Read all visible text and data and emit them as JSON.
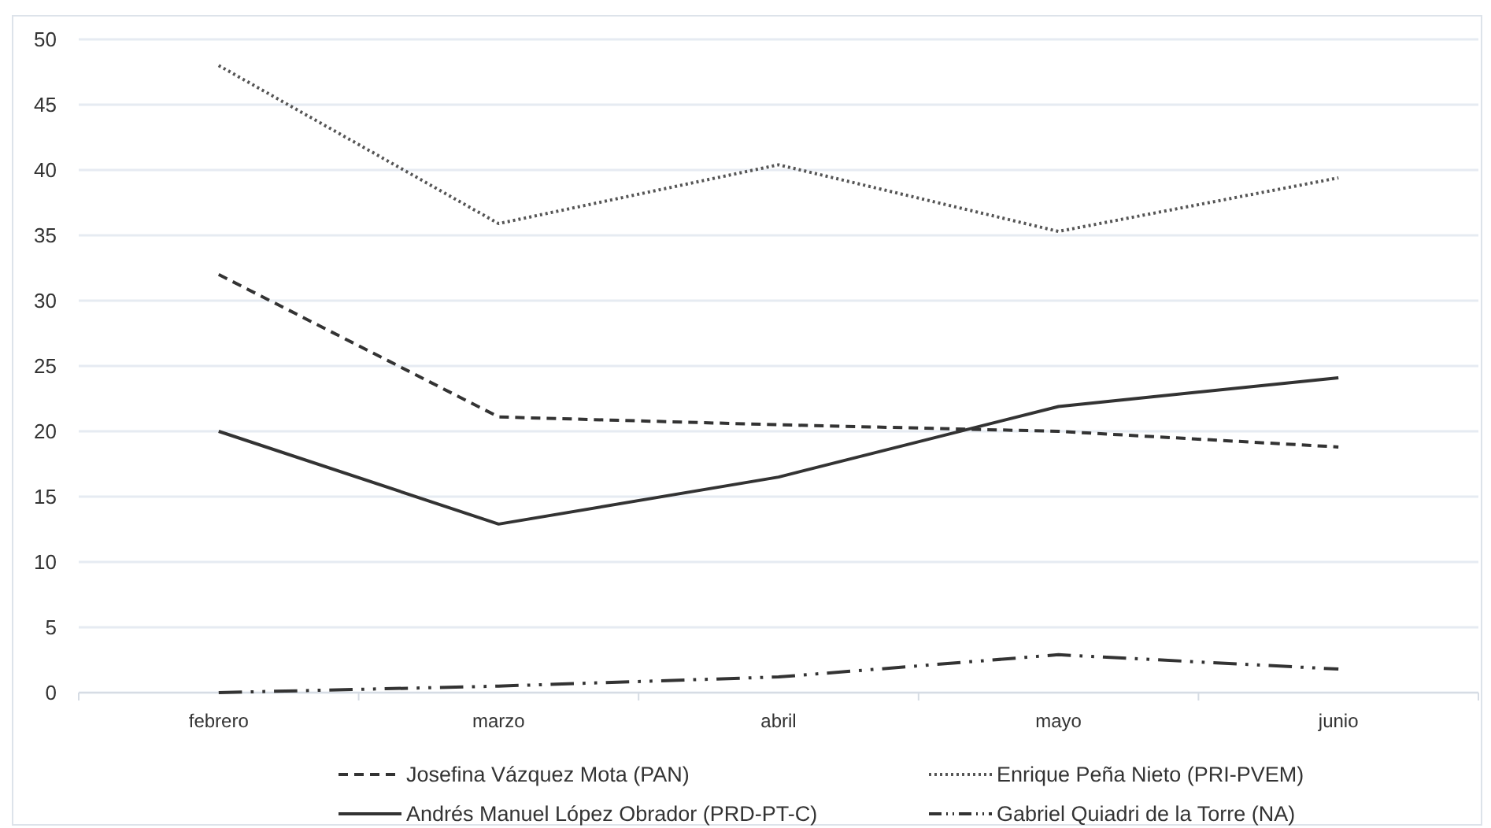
{
  "chart_data": {
    "type": "line",
    "categories": [
      "febrero",
      "marzo",
      "abril",
      "mayo",
      "junio"
    ],
    "series": [
      {
        "name": "Josefina Vázquez Mota (PAN)",
        "color": "#333333",
        "line_style": "dashed",
        "values": [
          32,
          21.1,
          20.5,
          20,
          18.8
        ]
      },
      {
        "name": "Enrique Peña Nieto (PRI-PVEM)",
        "color": "#555555",
        "line_style": "dotted",
        "values": [
          48,
          35.9,
          40.4,
          35.3,
          39.4
        ]
      },
      {
        "name": "Andrés Manuel López Obrador (PRD-PT-C)",
        "color": "#333333",
        "line_style": "solid",
        "values": [
          20,
          12.9,
          16.5,
          21.9,
          24.1
        ]
      },
      {
        "name": "Gabriel Quiadri de la Torre (NA)",
        "color": "#333333",
        "line_style": "dashdotdot",
        "values": [
          0,
          0.5,
          1.2,
          2.9,
          1.8
        ]
      }
    ],
    "ylim": [
      0,
      50
    ],
    "yticks": [
      0,
      5,
      10,
      15,
      20,
      25,
      30,
      35,
      40,
      45,
      50
    ],
    "grid": "y",
    "legend": "bottom",
    "marker": "none"
  }
}
